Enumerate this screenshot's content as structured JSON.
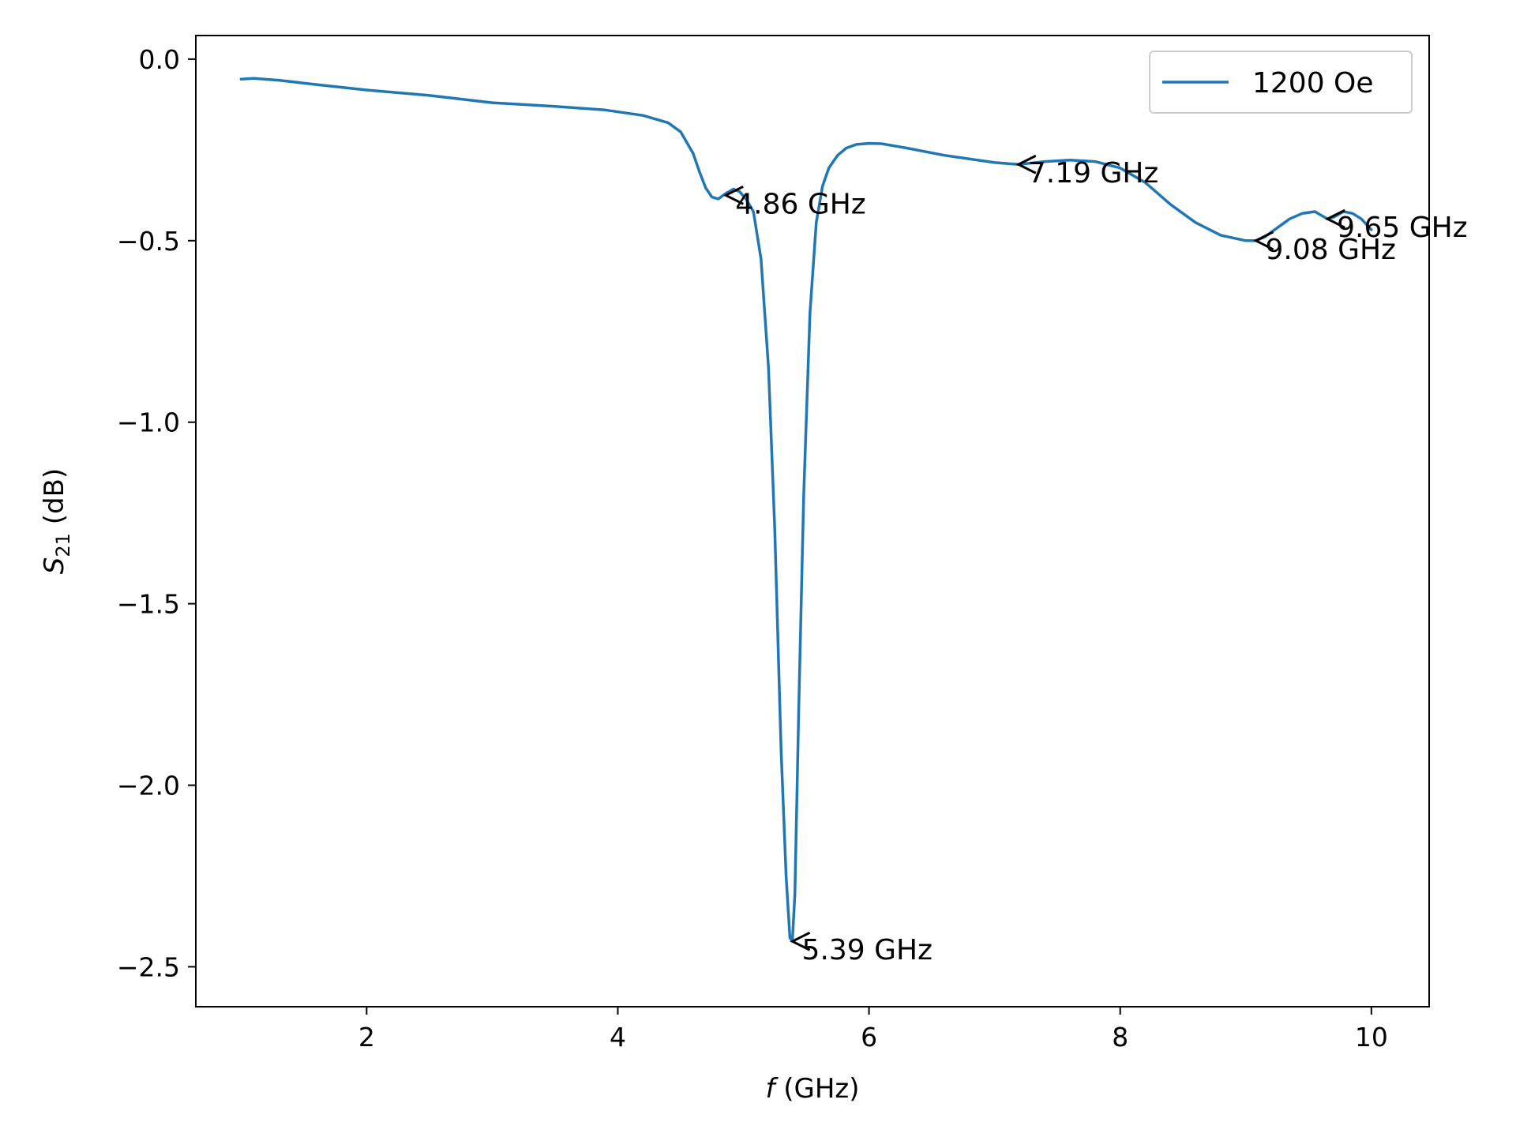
{
  "chart_data": {
    "type": "line",
    "xlabel_var": "f",
    "xlabel_unit": " (GHz)",
    "ylabel_main": "S",
    "ylabel_sub": "21",
    "ylabel_unit": " (dB)",
    "xlim": [
      0.64,
      10.46
    ],
    "ylim": [
      -2.61,
      0.065
    ],
    "x_ticks": [
      2,
      4,
      6,
      8,
      10
    ],
    "x_tick_labels": [
      "2",
      "4",
      "6",
      "8",
      "10"
    ],
    "y_ticks": [
      0.0,
      -0.5,
      -1.0,
      -1.5,
      -2.0,
      -2.5
    ],
    "y_tick_labels": [
      "0.0",
      "−0.5",
      "−1.0",
      "−1.5",
      "−2.0",
      "−2.5"
    ],
    "grid": false,
    "legend": {
      "position": "top-right",
      "entries": [
        "1200 Oe"
      ]
    },
    "series": [
      {
        "name": "1200 Oe",
        "color": "#1f77b4",
        "x": [
          1.0,
          1.1,
          1.3,
          1.6,
          2.0,
          2.5,
          3.0,
          3.5,
          3.9,
          4.2,
          4.4,
          4.5,
          4.6,
          4.65,
          4.7,
          4.75,
          4.8,
          4.86,
          4.92,
          4.97,
          5.02,
          5.08,
          5.14,
          5.2,
          5.25,
          5.3,
          5.34,
          5.37,
          5.39,
          5.41,
          5.44,
          5.48,
          5.53,
          5.58,
          5.63,
          5.68,
          5.75,
          5.82,
          5.9,
          6.0,
          6.1,
          6.3,
          6.6,
          7.0,
          7.19,
          7.4,
          7.6,
          7.8,
          8.0,
          8.2,
          8.4,
          8.6,
          8.8,
          9.0,
          9.08,
          9.15,
          9.25,
          9.35,
          9.45,
          9.55,
          9.6,
          9.65,
          9.7,
          9.78,
          9.85,
          9.92,
          10.0
        ],
        "y": [
          -0.055,
          -0.053,
          -0.058,
          -0.07,
          -0.085,
          -0.1,
          -0.12,
          -0.13,
          -0.14,
          -0.155,
          -0.175,
          -0.2,
          -0.26,
          -0.31,
          -0.355,
          -0.38,
          -0.385,
          -0.37,
          -0.358,
          -0.365,
          -0.385,
          -0.42,
          -0.55,
          -0.85,
          -1.3,
          -1.9,
          -2.25,
          -2.42,
          -2.43,
          -2.3,
          -1.8,
          -1.2,
          -0.7,
          -0.45,
          -0.35,
          -0.3,
          -0.265,
          -0.245,
          -0.235,
          -0.232,
          -0.233,
          -0.245,
          -0.265,
          -0.285,
          -0.29,
          -0.282,
          -0.278,
          -0.282,
          -0.3,
          -0.34,
          -0.4,
          -0.45,
          -0.485,
          -0.5,
          -0.5,
          -0.49,
          -0.465,
          -0.44,
          -0.425,
          -0.42,
          -0.43,
          -0.44,
          -0.435,
          -0.42,
          -0.425,
          -0.44,
          -0.47
        ]
      }
    ],
    "annotations": [
      {
        "x": 4.86,
        "y": -0.375,
        "label": "4.86 GHz"
      },
      {
        "x": 5.39,
        "y": -2.43,
        "label": "5.39 GHz"
      },
      {
        "x": 7.19,
        "y": -0.29,
        "label": "7.19 GHz"
      },
      {
        "x": 9.08,
        "y": -0.5,
        "label": "9.08 GHz"
      },
      {
        "x": 9.65,
        "y": -0.44,
        "label": "9.65 GHz"
      }
    ]
  }
}
